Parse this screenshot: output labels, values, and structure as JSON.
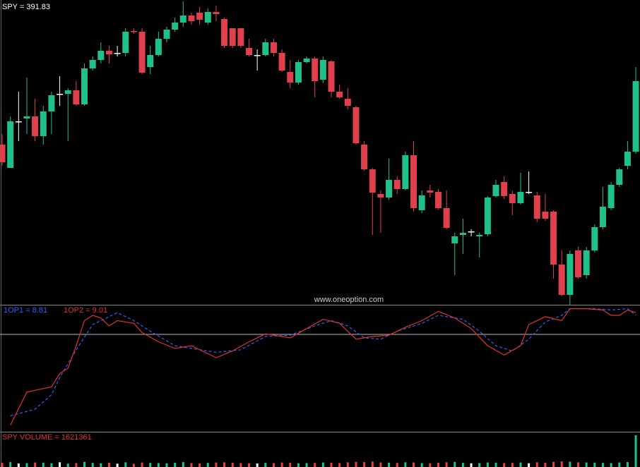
{
  "chart_data": [
    {
      "type": "candlestick",
      "title": "SPY = 391.83",
      "annotation": "www.oneoption.com",
      "ylim": [
        0,
        432
      ],
      "xlim": [
        -0.26,
        77.51
      ],
      "up_color": "#20c08a",
      "down_color": "#e0404b",
      "flat_color": "#ffffff",
      "open": [
        227,
        194,
        260,
        264,
        267,
        239,
        274,
        299,
        299,
        304,
        284,
        335,
        347,
        360,
        357,
        357,
        388,
        387,
        337,
        354,
        377,
        390,
        400,
        410,
        414,
        400,
        415,
        405,
        392,
        392,
        364,
        354,
        354,
        372,
        357,
        330,
        315,
        344,
        349,
        319,
        345,
        302,
        292,
        280,
        227,
        192,
        157,
        152,
        177,
        164,
        212,
        134,
        162,
        160,
        137,
        87,
        99,
        104,
        97,
        100,
        154,
        174,
        157,
        144,
        160,
        155,
        132,
        132,
        57,
        14,
        77,
        42,
        77,
        110,
        137,
        170,
        197,
        217
      ],
      "high": [
        242,
        267,
        302,
        322,
        292,
        282,
        302,
        324,
        307,
        317,
        342,
        352,
        372,
        367,
        367,
        392,
        392,
        392,
        367,
        387,
        394,
        407,
        430,
        414,
        422,
        420,
        424,
        407,
        392,
        392,
        377,
        362,
        377,
        377,
        362,
        347,
        347,
        352,
        352,
        352,
        347,
        312,
        307,
        282,
        232,
        194,
        162,
        207,
        182,
        217,
        232,
        162,
        170,
        164,
        162,
        102,
        122,
        107,
        102,
        154,
        177,
        182,
        162,
        187,
        189,
        160,
        157,
        134,
        77,
        77,
        82,
        82,
        114,
        167,
        174,
        194,
        232,
        337
      ],
      "low": [
        197,
        194,
        232,
        242,
        232,
        227,
        242,
        282,
        232,
        282,
        282,
        332,
        342,
        342,
        352,
        352,
        384,
        327,
        327,
        352,
        372,
        387,
        394,
        397,
        397,
        397,
        402,
        364,
        364,
        364,
        352,
        332,
        352,
        352,
        330,
        307,
        312,
        342,
        294,
        314,
        294,
        292,
        277,
        227,
        190,
        99,
        102,
        149,
        157,
        162,
        132,
        130,
        152,
        135,
        107,
        42,
        72,
        97,
        67,
        97,
        152,
        150,
        127,
        142,
        157,
        117,
        119,
        37,
        12,
        0,
        37,
        37,
        74,
        107,
        134,
        167,
        192,
        214
      ],
      "close": [
        202,
        260,
        260,
        267,
        239,
        274,
        297,
        299,
        304,
        284,
        335,
        347,
        360,
        355,
        357,
        387,
        387,
        329,
        354,
        377,
        390,
        400,
        410,
        402,
        404,
        415,
        412,
        367,
        367,
        367,
        354,
        354,
        372,
        357,
        332,
        315,
        344,
        349,
        317,
        347,
        302,
        294,
        282,
        229,
        192,
        159,
        152,
        177,
        164,
        212,
        137,
        155,
        159,
        137,
        109,
        97,
        102,
        104,
        99,
        152,
        170,
        154,
        144,
        160,
        160,
        122,
        122,
        57,
        14,
        72,
        39,
        77,
        110,
        139,
        170,
        192,
        217,
        317
      ]
    },
    {
      "type": "line",
      "ylim": [
        0,
        9.6
      ],
      "xlim": [
        -0.26,
        77.51
      ],
      "hline": 7.36,
      "series": [
        {
          "name": "1OP1 = 8.81",
          "color": "#3a5cff",
          "dash": true,
          "x": [
            1,
            4,
            6,
            7,
            9,
            11,
            14,
            16,
            18,
            21,
            23,
            26,
            29,
            32,
            35,
            38,
            40,
            42,
            44,
            46,
            48,
            51,
            53,
            56,
            58,
            60,
            62,
            64,
            66,
            68,
            69,
            72,
            74,
            76,
            77
          ],
          "values": [
            1.2,
            1.7,
            2.8,
            4.1,
            6.2,
            8.1,
            9.0,
            8.4,
            7.6,
            6.5,
            6.3,
            6.0,
            6.2,
            7.2,
            7.3,
            8.0,
            8.4,
            8.0,
            7.1,
            7.0,
            7.6,
            8.2,
            8.8,
            8.5,
            7.6,
            6.5,
            6.1,
            7.0,
            8.3,
            8.8,
            9.3,
            9.3,
            9.2,
            9.3,
            8.81
          ]
        },
        {
          "name": "1OP2 = 9.01",
          "color": "#e03030",
          "dash": false,
          "x": [
            1,
            3,
            6,
            7,
            8,
            9,
            10,
            11,
            12,
            13,
            14,
            16,
            17,
            19,
            21,
            23,
            26,
            28,
            30,
            32,
            34,
            35,
            37,
            39,
            41,
            43,
            45,
            47,
            49,
            51,
            53,
            55,
            57,
            59,
            61,
            63,
            64,
            66,
            68,
            69,
            71,
            73,
            74,
            75,
            76,
            77
          ],
          "values": [
            0.5,
            3.0,
            3.4,
            4.4,
            4.8,
            6.5,
            8.4,
            8.8,
            8.6,
            8.0,
            8.4,
            8.2,
            7.5,
            6.8,
            6.3,
            6.5,
            5.6,
            6.1,
            6.8,
            7.4,
            7.2,
            7.1,
            7.8,
            8.5,
            8.2,
            7.0,
            7.2,
            7.3,
            7.9,
            8.4,
            9.1,
            8.6,
            7.8,
            6.5,
            5.8,
            6.5,
            8.1,
            8.7,
            8.4,
            9.3,
            9.3,
            9.2,
            8.8,
            8.8,
            9.2,
            9.01
          ]
        }
      ]
    },
    {
      "type": "volume",
      "title": "SPY VOLUME = 1621361",
      "ylim": [
        0,
        1800000
      ],
      "xlim": [
        -0.26,
        77.51
      ],
      "values": [
        210000,
        250000,
        180000,
        200000,
        230000,
        220000,
        190000,
        240000,
        170000,
        200000,
        260000,
        210000,
        190000,
        220000,
        170000,
        240000,
        160000,
        230000,
        210000,
        200000,
        190000,
        220000,
        250000,
        200000,
        180000,
        210000,
        230000,
        240000,
        220000,
        200000,
        190000,
        180000,
        210000,
        200000,
        230000,
        220000,
        190000,
        200000,
        210000,
        230000,
        220000,
        200000,
        240000,
        260000,
        250000,
        280000,
        230000,
        220000,
        210000,
        240000,
        230000,
        200000,
        190000,
        220000,
        240000,
        260000,
        210000,
        190000,
        200000,
        230000,
        220000,
        200000,
        210000,
        230000,
        190000,
        240000,
        220000,
        260000,
        290000,
        270000,
        240000,
        230000,
        220000,
        210000,
        200000,
        230000,
        250000,
        1621361
      ]
    }
  ]
}
